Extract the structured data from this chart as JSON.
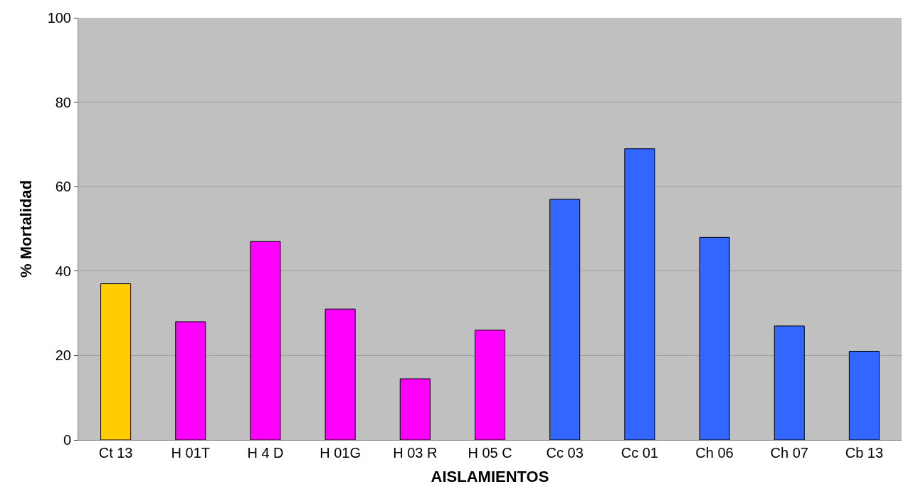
{
  "chart_data": {
    "type": "bar",
    "xlabel": "AISLAMIENTOS",
    "ylabel": "% Mortalidad",
    "categories": [
      "Ct 13",
      "H 01T",
      "H 4 D",
      "H 01G",
      "H 03 R",
      "H 05 C",
      "Cc 03",
      "Cc 01",
      "Ch 06",
      "Ch 07",
      "Cb 13"
    ],
    "values": [
      37,
      28,
      47,
      31,
      14.5,
      26,
      57,
      69,
      48,
      27,
      21
    ],
    "colors": [
      "#ffcc00",
      "#ff00ff",
      "#ff00ff",
      "#ff00ff",
      "#ff00ff",
      "#ff00ff",
      "#3366ff",
      "#3366ff",
      "#3366ff",
      "#3366ff",
      "#3366ff"
    ],
    "ylim": [
      0,
      100
    ],
    "yticks": [
      0,
      20,
      40,
      60,
      80,
      100
    ],
    "grid": "y",
    "legend": false
  }
}
